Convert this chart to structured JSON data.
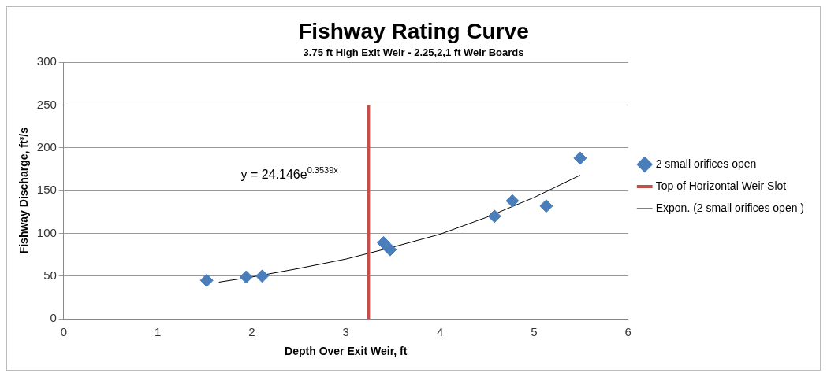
{
  "chart_data": {
    "type": "scatter",
    "title": "Fishway Rating Curve",
    "subtitle": "3.75 ft High Exit Weir - 2.25,2,1 ft Weir Boards",
    "xlabel": "Depth Over Exit Weir, ft",
    "ylabel": "Fishway Discharge, ft³/s",
    "xlim": [
      0,
      6
    ],
    "xticks": [
      0,
      1,
      2,
      3,
      4,
      5,
      6
    ],
    "ylim": [
      0,
      300
    ],
    "yticks": [
      0,
      50,
      100,
      150,
      200,
      250,
      300
    ],
    "grid": "y",
    "legend": "right",
    "annotations": [
      "y = 24.146e$^{0.3539x}$"
    ],
    "series": [
      {
        "name": "2 small orifices open",
        "type": "scatter",
        "color": "#4a7ebb",
        "marker": "diamond",
        "x": [
          1.52,
          1.94,
          2.11,
          3.4,
          3.47,
          4.58,
          4.77,
          5.13,
          5.49
        ],
        "values": [
          45,
          49,
          50,
          89,
          81,
          120,
          138,
          132,
          188
        ]
      },
      {
        "name": "Top of Horizontal Weir Slot",
        "type": "line",
        "color": "#c0504d",
        "marker": "none",
        "x": [
          3.24,
          3.24
        ],
        "values": [
          0,
          250
        ]
      },
      {
        "name": "Expon. (2 small orifices open )",
        "type": "line",
        "color": "#000000",
        "marker": "none",
        "x": [
          1.65,
          2,
          2.5,
          3,
          3.5,
          4,
          4.5,
          5,
          5.49
        ],
        "values": [
          43,
          49,
          59,
          70,
          84,
          99,
          119,
          142,
          168
        ]
      }
    ]
  }
}
